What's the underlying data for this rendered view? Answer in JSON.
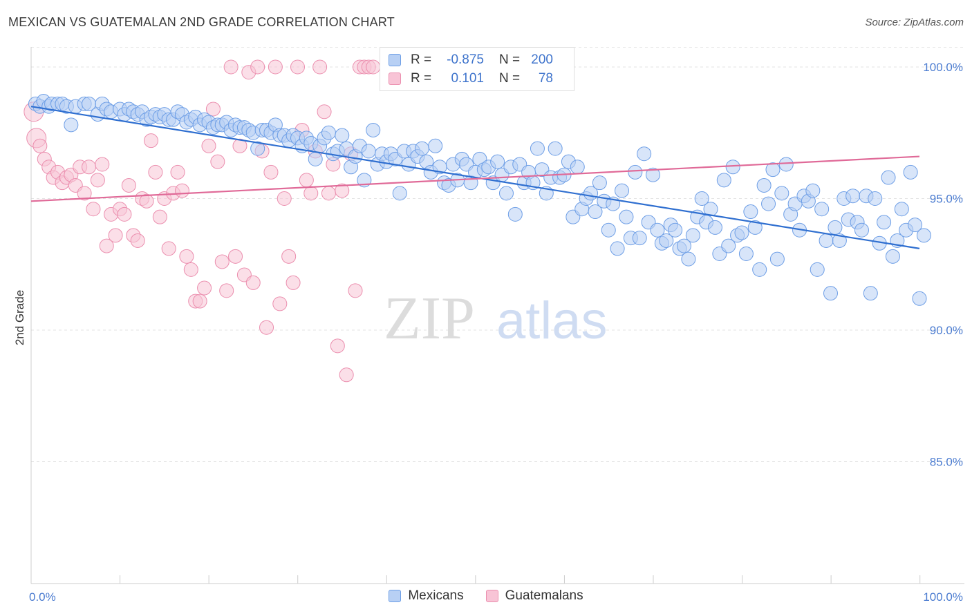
{
  "title": "MEXICAN VS GUATEMALAN 2ND GRADE CORRELATION CHART",
  "source": "Source: ZipAtlas.com",
  "watermark": {
    "zip": "ZIP",
    "atlas": "atlas"
  },
  "legend": [
    {
      "r_label": "R =",
      "r": "-0.875",
      "n_label": "N =",
      "n": "200",
      "fill": "#b8d0f4",
      "stroke": "#6d9ee6"
    },
    {
      "r_label": "R =",
      "r": "0.101",
      "n_label": "N =",
      "n": "78",
      "fill": "#f8c4d6",
      "stroke": "#eb8eae"
    }
  ],
  "bottom_legend": [
    "Mexicans",
    "Guatemalans"
  ],
  "chart_data": {
    "type": "scatter",
    "ylabel": "2nd Grade",
    "xlim": [
      0,
      100
    ],
    "ylim": [
      80.5,
      100.8
    ],
    "y_ticks": [
      85,
      90,
      95,
      100
    ],
    "y_tick_labels": [
      "85.0%",
      "90.0%",
      "95.0%",
      "100.0%"
    ],
    "x_tick_labels": [
      "0.0%",
      "100.0%"
    ],
    "grid": "horizontal dashed",
    "legend_position": "top-center",
    "series": [
      {
        "name": "Mexicans",
        "color": "#6d9ee6",
        "fill": "#b8d0f4",
        "trend": {
          "x": [
            0,
            100
          ],
          "y": [
            98.5,
            93.1
          ],
          "color": "#2f6fd0"
        },
        "points": [
          [
            0.5,
            98.6
          ],
          [
            1,
            98.5
          ],
          [
            1.4,
            98.7
          ],
          [
            2,
            98.5
          ],
          [
            2.3,
            98.6
          ],
          [
            3,
            98.6
          ],
          [
            3.5,
            98.6
          ],
          [
            4,
            98.5
          ],
          [
            4.5,
            97.8
          ],
          [
            5,
            98.5
          ],
          [
            6,
            98.6
          ],
          [
            6.5,
            98.6
          ],
          [
            7.5,
            98.2
          ],
          [
            8,
            98.6
          ],
          [
            8.5,
            98.4
          ],
          [
            9,
            98.3
          ],
          [
            10,
            98.4
          ],
          [
            10.5,
            98.2
          ],
          [
            11,
            98.4
          ],
          [
            11.5,
            98.3
          ],
          [
            12,
            98.2
          ],
          [
            12.5,
            98.3
          ],
          [
            13,
            98.0
          ],
          [
            13.5,
            98.1
          ],
          [
            14,
            98.2
          ],
          [
            14.5,
            98.1
          ],
          [
            15,
            98.2
          ],
          [
            15.5,
            98.0
          ],
          [
            16,
            98.0
          ],
          [
            16.5,
            98.3
          ],
          [
            17,
            98.2
          ],
          [
            17.5,
            97.9
          ],
          [
            18,
            98.0
          ],
          [
            18.5,
            98.1
          ],
          [
            19,
            97.8
          ],
          [
            19.5,
            98.0
          ],
          [
            20,
            97.9
          ],
          [
            20.5,
            97.7
          ],
          [
            21,
            97.8
          ],
          [
            21.5,
            97.8
          ],
          [
            22,
            97.9
          ],
          [
            22.5,
            97.6
          ],
          [
            23,
            97.8
          ],
          [
            23.5,
            97.7
          ],
          [
            24,
            97.7
          ],
          [
            24.5,
            97.6
          ],
          [
            25,
            97.5
          ],
          [
            25.5,
            96.9
          ],
          [
            26,
            97.6
          ],
          [
            26.5,
            97.6
          ],
          [
            27,
            97.5
          ],
          [
            27.5,
            97.8
          ],
          [
            28,
            97.4
          ],
          [
            28.5,
            97.4
          ],
          [
            29,
            97.2
          ],
          [
            29.5,
            97.4
          ],
          [
            30,
            97.3
          ],
          [
            30.5,
            97.0
          ],
          [
            31,
            97.3
          ],
          [
            31.5,
            97.1
          ],
          [
            32,
            96.5
          ],
          [
            32.5,
            97.0
          ],
          [
            33,
            97.3
          ],
          [
            33.5,
            97.5
          ],
          [
            34,
            96.7
          ],
          [
            34.5,
            96.8
          ],
          [
            35,
            97.4
          ],
          [
            35.5,
            96.9
          ],
          [
            36,
            96.2
          ],
          [
            36.5,
            96.6
          ],
          [
            37,
            97.0
          ],
          [
            37.5,
            95.7
          ],
          [
            38,
            96.8
          ],
          [
            38.5,
            97.6
          ],
          [
            39,
            96.3
          ],
          [
            39.5,
            96.7
          ],
          [
            40,
            96.4
          ],
          [
            40.5,
            96.7
          ],
          [
            41,
            96.5
          ],
          [
            41.5,
            95.2
          ],
          [
            42,
            96.8
          ],
          [
            42.5,
            96.3
          ],
          [
            43,
            96.8
          ],
          [
            43.5,
            96.6
          ],
          [
            44,
            96.9
          ],
          [
            44.5,
            96.4
          ],
          [
            45,
            96.0
          ],
          [
            45.5,
            97.0
          ],
          [
            46,
            96.2
          ],
          [
            46.5,
            95.6
          ],
          [
            47,
            95.5
          ],
          [
            47.5,
            96.3
          ],
          [
            48,
            95.7
          ],
          [
            48.5,
            96.5
          ],
          [
            49,
            96.3
          ],
          [
            49.5,
            95.6
          ],
          [
            50,
            96.0
          ],
          [
            50.5,
            96.5
          ],
          [
            51,
            96.1
          ],
          [
            51.5,
            96.2
          ],
          [
            52,
            95.6
          ],
          [
            52.5,
            96.4
          ],
          [
            53,
            95.9
          ],
          [
            53.5,
            95.2
          ],
          [
            54,
            96.2
          ],
          [
            54.5,
            94.4
          ],
          [
            55,
            96.3
          ],
          [
            55.5,
            95.6
          ],
          [
            56,
            96.0
          ],
          [
            56.5,
            95.6
          ],
          [
            57,
            96.9
          ],
          [
            57.5,
            96.1
          ],
          [
            58,
            95.2
          ],
          [
            58.5,
            95.8
          ],
          [
            59,
            96.9
          ],
          [
            59.5,
            95.8
          ],
          [
            60,
            95.9
          ],
          [
            60.5,
            96.4
          ],
          [
            61,
            94.3
          ],
          [
            61.5,
            96.2
          ],
          [
            62,
            94.6
          ],
          [
            62.5,
            95.0
          ],
          [
            63,
            95.2
          ],
          [
            63.5,
            94.5
          ],
          [
            64,
            95.6
          ],
          [
            64.5,
            94.9
          ],
          [
            65,
            93.8
          ],
          [
            65.5,
            94.8
          ],
          [
            66,
            93.1
          ],
          [
            66.5,
            95.3
          ],
          [
            67,
            94.3
          ],
          [
            67.5,
            93.5
          ],
          [
            68,
            96.0
          ],
          [
            68.5,
            93.5
          ],
          [
            69,
            96.7
          ],
          [
            69.5,
            94.1
          ],
          [
            70,
            95.9
          ],
          [
            70.5,
            93.8
          ],
          [
            71,
            93.3
          ],
          [
            71.5,
            93.4
          ],
          [
            72,
            94.0
          ],
          [
            72.5,
            93.8
          ],
          [
            73,
            93.1
          ],
          [
            73.5,
            93.2
          ],
          [
            74,
            92.7
          ],
          [
            74.5,
            93.6
          ],
          [
            75,
            94.3
          ],
          [
            75.5,
            95.0
          ],
          [
            76,
            94.1
          ],
          [
            76.5,
            94.6
          ],
          [
            77,
            93.9
          ],
          [
            77.5,
            92.9
          ],
          [
            78,
            95.7
          ],
          [
            78.5,
            93.2
          ],
          [
            79,
            96.2
          ],
          [
            79.5,
            93.6
          ],
          [
            80,
            93.7
          ],
          [
            80.5,
            92.9
          ],
          [
            81,
            94.5
          ],
          [
            81.5,
            93.9
          ],
          [
            82,
            92.3
          ],
          [
            82.5,
            95.5
          ],
          [
            83,
            94.8
          ],
          [
            83.5,
            96.1
          ],
          [
            84,
            92.7
          ],
          [
            84.5,
            95.2
          ],
          [
            85,
            96.3
          ],
          [
            85.5,
            94.4
          ],
          [
            86,
            94.8
          ],
          [
            86.5,
            93.8
          ],
          [
            87,
            95.1
          ],
          [
            87.5,
            94.9
          ],
          [
            88,
            95.3
          ],
          [
            88.5,
            92.3
          ],
          [
            89,
            94.6
          ],
          [
            89.5,
            93.4
          ],
          [
            90,
            91.4
          ],
          [
            90.5,
            93.9
          ],
          [
            91,
            93.4
          ],
          [
            91.5,
            95.0
          ],
          [
            92,
            94.2
          ],
          [
            92.5,
            95.1
          ],
          [
            93,
            94.1
          ],
          [
            93.5,
            93.8
          ],
          [
            94,
            95.1
          ],
          [
            94.5,
            91.4
          ],
          [
            95,
            95.0
          ],
          [
            95.5,
            93.3
          ],
          [
            96,
            94.1
          ],
          [
            96.5,
            95.8
          ],
          [
            97,
            92.8
          ],
          [
            97.5,
            93.4
          ],
          [
            98,
            94.6
          ],
          [
            98.5,
            93.8
          ],
          [
            99,
            96.0
          ],
          [
            99.5,
            94.0
          ],
          [
            100,
            91.2
          ],
          [
            100.5,
            93.6
          ]
        ]
      },
      {
        "name": "Guatemalans",
        "color": "#eb8eae",
        "fill": "#f8c4d6",
        "trend": {
          "x": [
            0,
            100
          ],
          "y": [
            94.9,
            96.6
          ],
          "color": "#e06a98"
        },
        "points": [
          [
            0.3,
            98.3
          ],
          [
            0.6,
            97.3
          ],
          [
            1,
            97.0
          ],
          [
            1.5,
            96.5
          ],
          [
            2,
            96.2
          ],
          [
            2.5,
            95.8
          ],
          [
            3,
            96.0
          ],
          [
            3.5,
            95.6
          ],
          [
            4,
            95.8
          ],
          [
            4.5,
            95.9
          ],
          [
            5,
            95.5
          ],
          [
            5.5,
            96.2
          ],
          [
            6,
            95.2
          ],
          [
            6.5,
            96.2
          ],
          [
            7,
            94.6
          ],
          [
            7.5,
            95.7
          ],
          [
            8,
            96.3
          ],
          [
            8.5,
            93.2
          ],
          [
            9,
            94.4
          ],
          [
            9.5,
            93.6
          ],
          [
            10,
            94.6
          ],
          [
            10.5,
            94.4
          ],
          [
            11,
            95.5
          ],
          [
            11.5,
            93.6
          ],
          [
            12,
            93.4
          ],
          [
            12.5,
            95.0
          ],
          [
            13,
            94.9
          ],
          [
            13.5,
            97.2
          ],
          [
            14,
            96.0
          ],
          [
            14.5,
            94.3
          ],
          [
            15,
            95.0
          ],
          [
            15.5,
            93.1
          ],
          [
            16,
            95.2
          ],
          [
            16.5,
            96.0
          ],
          [
            17,
            95.3
          ],
          [
            17.5,
            92.8
          ],
          [
            18,
            92.3
          ],
          [
            18.5,
            91.1
          ],
          [
            19,
            91.1
          ],
          [
            19.5,
            91.6
          ],
          [
            20,
            97.0
          ],
          [
            20.5,
            98.4
          ],
          [
            21,
            96.4
          ],
          [
            21.5,
            92.6
          ],
          [
            22,
            91.5
          ],
          [
            22.5,
            100.0
          ],
          [
            23,
            92.8
          ],
          [
            23.5,
            97.0
          ],
          [
            24,
            92.1
          ],
          [
            24.5,
            99.8
          ],
          [
            25,
            91.8
          ],
          [
            25.5,
            100.0
          ],
          [
            26,
            96.8
          ],
          [
            26.5,
            90.1
          ],
          [
            27,
            96.0
          ],
          [
            27.5,
            100.0
          ],
          [
            28,
            91.0
          ],
          [
            28.5,
            95.0
          ],
          [
            29,
            92.8
          ],
          [
            29.5,
            91.8
          ],
          [
            30,
            100.0
          ],
          [
            30.5,
            97.6
          ],
          [
            31,
            95.7
          ],
          [
            31.5,
            95.2
          ],
          [
            32,
            96.8
          ],
          [
            32.5,
            100.0
          ],
          [
            33,
            98.3
          ],
          [
            33.5,
            95.2
          ],
          [
            34,
            96.3
          ],
          [
            34.5,
            89.4
          ],
          [
            35,
            95.3
          ],
          [
            35.5,
            88.3
          ],
          [
            36,
            96.7
          ],
          [
            36.5,
            91.5
          ],
          [
            37,
            100.0
          ],
          [
            37.5,
            100.0
          ],
          [
            38,
            100.0
          ],
          [
            38.5,
            100.0
          ]
        ]
      }
    ]
  }
}
